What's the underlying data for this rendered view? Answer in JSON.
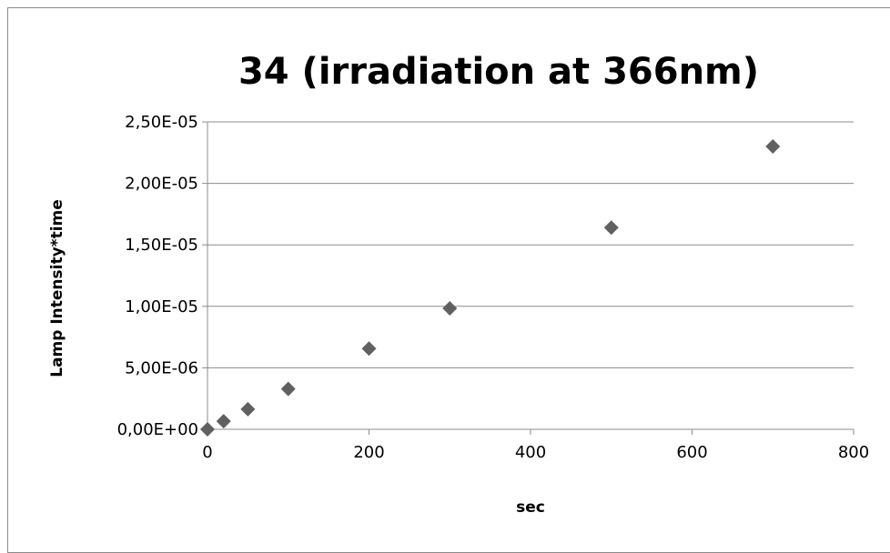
{
  "chart_data": {
    "type": "scatter",
    "title": "34  (irradiation at 366nm)",
    "xlabel": "sec",
    "ylabel": "Lamp Intensity*time",
    "xlim": [
      0,
      800
    ],
    "ylim": [
      0,
      2.5e-05
    ],
    "xticks": [
      {
        "value": 0,
        "label": "0"
      },
      {
        "value": 200,
        "label": "200"
      },
      {
        "value": 400,
        "label": "400"
      },
      {
        "value": 600,
        "label": "600"
      },
      {
        "value": 800,
        "label": "800"
      }
    ],
    "yticks": [
      {
        "value": 0,
        "label": "0,00E+00"
      },
      {
        "value": 5e-06,
        "label": "5,00E-06"
      },
      {
        "value": 1e-05,
        "label": "1,00E-05"
      },
      {
        "value": 1.5e-05,
        "label": "1,50E-05"
      },
      {
        "value": 2e-05,
        "label": "2,00E-05"
      },
      {
        "value": 2.5e-05,
        "label": "2,50E-05"
      }
    ],
    "grid": true,
    "legend": "none",
    "marker_color": "#606060",
    "points": [
      {
        "x": 0,
        "y": 0
      },
      {
        "x": 20,
        "y": 6.6e-07
      },
      {
        "x": 50,
        "y": 1.64e-06
      },
      {
        "x": 100,
        "y": 3.28e-06
      },
      {
        "x": 200,
        "y": 6.56e-06
      },
      {
        "x": 300,
        "y": 9.84e-06
      },
      {
        "x": 500,
        "y": 1.64e-05
      },
      {
        "x": 700,
        "y": 2.3e-05
      }
    ]
  }
}
